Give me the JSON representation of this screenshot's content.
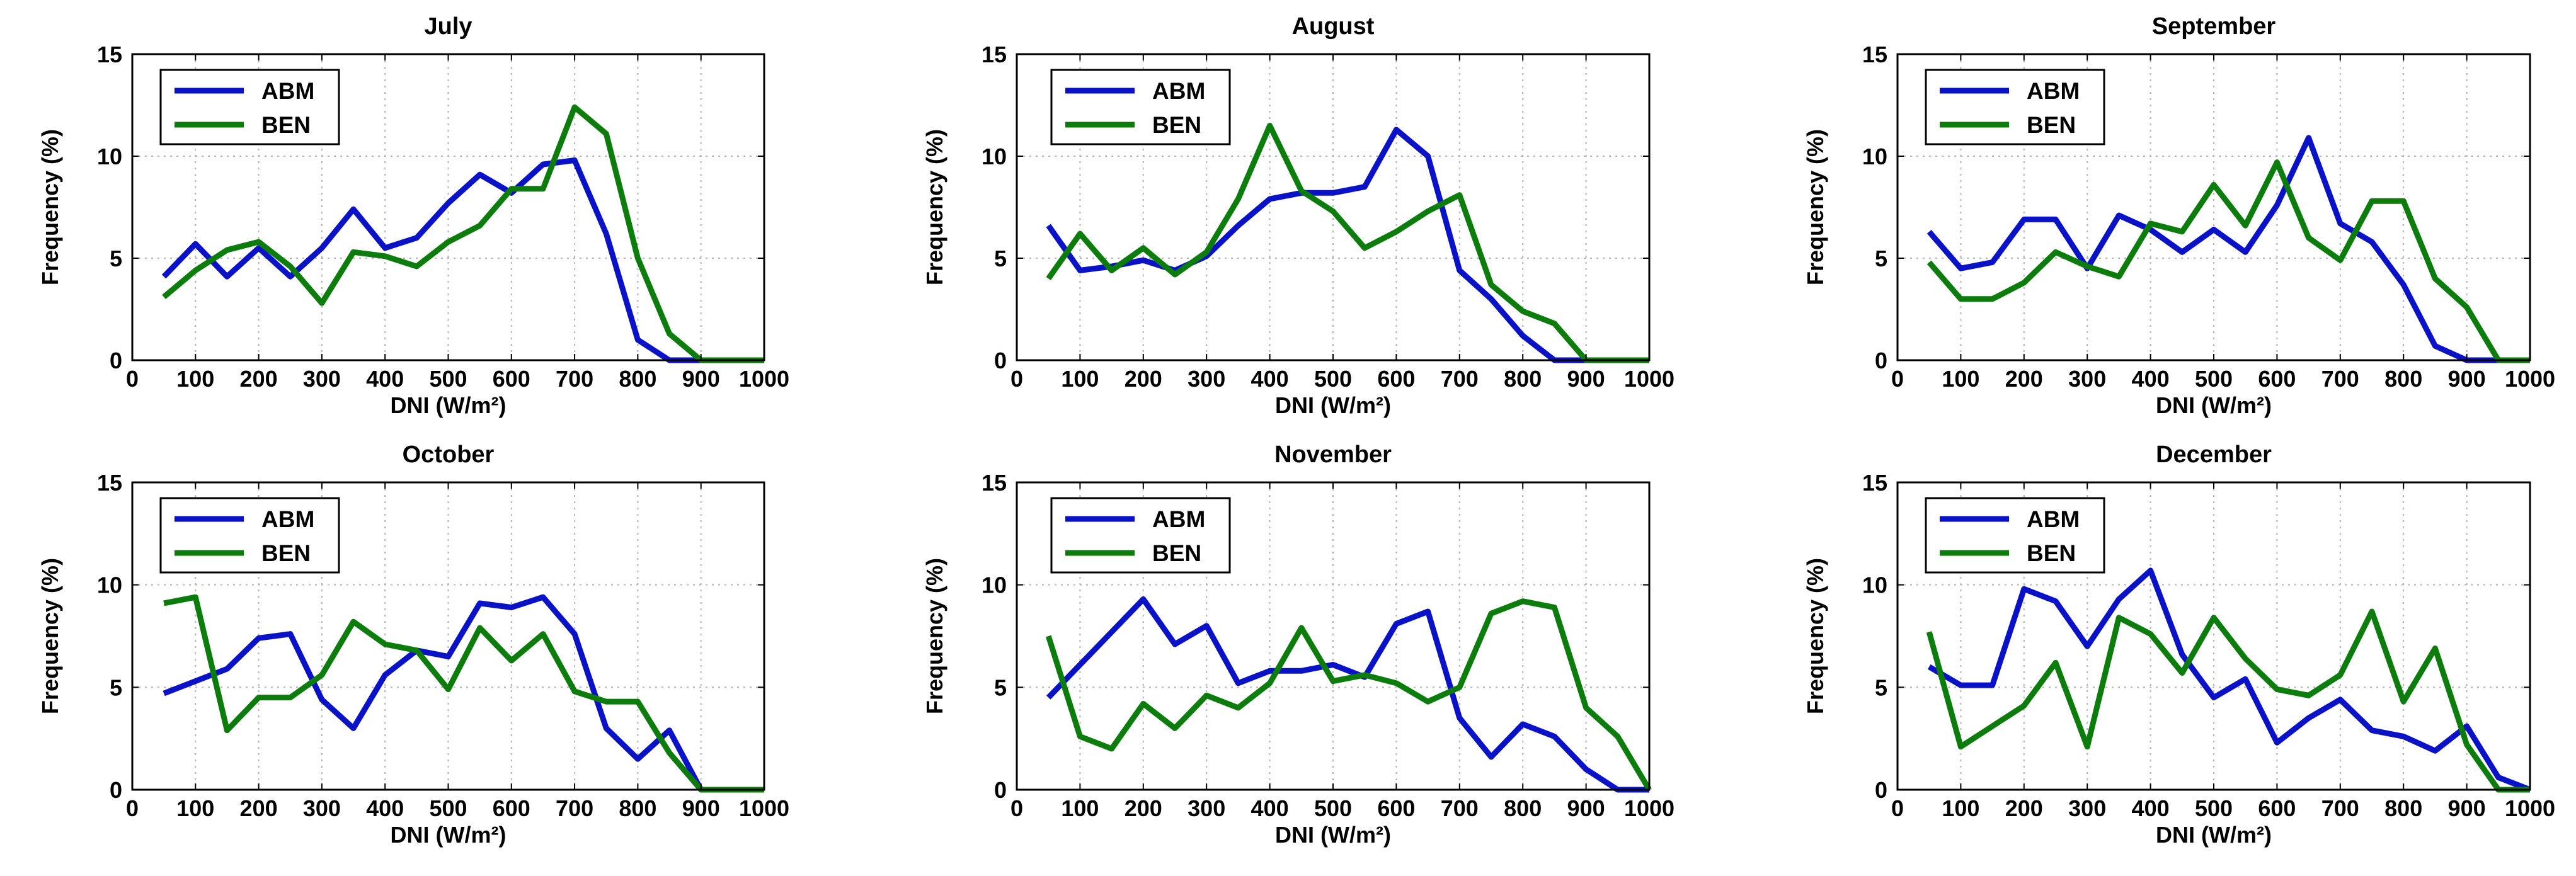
{
  "colors": {
    "ABM": "#0a12c8",
    "BEN": "#0c7d0c",
    "grid": "#b4b4b4",
    "axis": "#000000"
  },
  "chart_data": [
    {
      "type": "line",
      "title": "July",
      "xlabel": "DNI (W/m²)",
      "ylabel": "Frequency (%)",
      "xlim": [
        0,
        1000
      ],
      "ylim": [
        0,
        15
      ],
      "xticks": [
        0,
        100,
        200,
        300,
        400,
        500,
        600,
        700,
        800,
        900,
        1000
      ],
      "yticks": [
        0,
        5,
        10,
        15
      ],
      "grid": true,
      "legend_position": "top-left",
      "series": [
        {
          "name": "ABM",
          "x": [
            50,
            100,
            150,
            200,
            250,
            300,
            350,
            400,
            450,
            500,
            550,
            600,
            650,
            700,
            750,
            800,
            850,
            900,
            950,
            1000
          ],
          "y": [
            4.1,
            5.7,
            4.1,
            5.5,
            4.1,
            5.5,
            7.4,
            5.5,
            6.0,
            7.7,
            9.1,
            8.2,
            9.6,
            9.8,
            6.2,
            1.0,
            0,
            0,
            0,
            0
          ]
        },
        {
          "name": "BEN",
          "x": [
            50,
            100,
            150,
            200,
            250,
            300,
            350,
            400,
            450,
            500,
            550,
            600,
            650,
            700,
            750,
            800,
            850,
            900,
            950,
            1000
          ],
          "y": [
            3.1,
            4.4,
            5.4,
            5.8,
            4.6,
            2.8,
            5.3,
            5.1,
            4.6,
            5.8,
            6.6,
            8.4,
            8.4,
            12.4,
            11.1,
            5.0,
            1.3,
            0,
            0,
            0
          ]
        }
      ]
    },
    {
      "type": "line",
      "title": "August",
      "xlabel": "DNI (W/m²)",
      "ylabel": "Frequency (%)",
      "xlim": [
        0,
        1000
      ],
      "ylim": [
        0,
        15
      ],
      "xticks": [
        0,
        100,
        200,
        300,
        400,
        500,
        600,
        700,
        800,
        900,
        1000
      ],
      "yticks": [
        0,
        5,
        10,
        15
      ],
      "grid": true,
      "legend_position": "top-left",
      "series": [
        {
          "name": "ABM",
          "x": [
            50,
            100,
            150,
            200,
            250,
            300,
            350,
            400,
            450,
            500,
            550,
            600,
            650,
            700,
            750,
            800,
            850,
            900,
            950,
            1000
          ],
          "y": [
            6.6,
            4.4,
            4.6,
            4.9,
            4.4,
            5.1,
            6.6,
            7.9,
            8.2,
            8.2,
            8.5,
            11.3,
            10.0,
            4.4,
            3.0,
            1.2,
            0,
            0,
            0,
            0
          ]
        },
        {
          "name": "BEN",
          "x": [
            50,
            100,
            150,
            200,
            250,
            300,
            350,
            400,
            450,
            500,
            550,
            600,
            650,
            700,
            750,
            800,
            850,
            900,
            950,
            1000
          ],
          "y": [
            4.0,
            6.2,
            4.4,
            5.5,
            4.2,
            5.3,
            7.9,
            11.5,
            8.3,
            7.3,
            5.5,
            6.3,
            7.3,
            8.1,
            3.7,
            2.4,
            1.8,
            0,
            0,
            0
          ]
        }
      ]
    },
    {
      "type": "line",
      "title": "September",
      "xlabel": "DNI (W/m²)",
      "ylabel": "Frequency (%)",
      "xlim": [
        0,
        1000
      ],
      "ylim": [
        0,
        15
      ],
      "xticks": [
        0,
        100,
        200,
        300,
        400,
        500,
        600,
        700,
        800,
        900,
        1000
      ],
      "yticks": [
        0,
        5,
        10,
        15
      ],
      "grid": true,
      "legend_position": "top-left",
      "series": [
        {
          "name": "ABM",
          "x": [
            50,
            100,
            150,
            200,
            250,
            300,
            350,
            400,
            450,
            500,
            550,
            600,
            650,
            700,
            750,
            800,
            850,
            900,
            950,
            1000
          ],
          "y": [
            6.3,
            4.5,
            4.8,
            6.9,
            6.9,
            4.5,
            7.1,
            6.4,
            5.3,
            6.4,
            5.3,
            7.6,
            10.9,
            6.7,
            5.8,
            3.7,
            0.7,
            0,
            0,
            0
          ]
        },
        {
          "name": "BEN",
          "x": [
            50,
            100,
            150,
            200,
            250,
            300,
            350,
            400,
            450,
            500,
            550,
            600,
            650,
            700,
            750,
            800,
            850,
            900,
            950,
            1000
          ],
          "y": [
            4.8,
            3.0,
            3.0,
            3.8,
            5.3,
            4.6,
            4.1,
            6.7,
            6.3,
            8.6,
            6.6,
            9.7,
            6.0,
            4.9,
            7.8,
            7.8,
            4.0,
            2.6,
            0,
            0
          ]
        }
      ]
    },
    {
      "type": "line",
      "title": "October",
      "xlabel": "DNI (W/m²)",
      "ylabel": "Frequency (%)",
      "xlim": [
        0,
        1000
      ],
      "ylim": [
        0,
        15
      ],
      "xticks": [
        0,
        100,
        200,
        300,
        400,
        500,
        600,
        700,
        800,
        900,
        1000
      ],
      "yticks": [
        0,
        5,
        10,
        15
      ],
      "grid": true,
      "legend_position": "top-left",
      "series": [
        {
          "name": "ABM",
          "x": [
            50,
            100,
            150,
            200,
            250,
            300,
            350,
            400,
            450,
            500,
            550,
            600,
            650,
            700,
            750,
            800,
            850,
            900,
            950,
            1000
          ],
          "y": [
            4.7,
            5.3,
            5.9,
            7.4,
            7.6,
            4.4,
            3.0,
            5.6,
            6.8,
            6.5,
            9.1,
            8.9,
            9.4,
            7.6,
            3.0,
            1.5,
            2.9,
            0,
            0,
            0
          ]
        },
        {
          "name": "BEN",
          "x": [
            50,
            100,
            150,
            200,
            250,
            300,
            350,
            400,
            450,
            500,
            550,
            600,
            650,
            700,
            750,
            800,
            850,
            900,
            950,
            1000
          ],
          "y": [
            9.1,
            9.4,
            2.9,
            4.5,
            4.5,
            5.6,
            8.2,
            7.1,
            6.8,
            4.9,
            7.9,
            6.3,
            7.6,
            4.8,
            4.3,
            4.3,
            1.8,
            0,
            0,
            0
          ]
        }
      ]
    },
    {
      "type": "line",
      "title": "November",
      "xlabel": "DNI (W/m²)",
      "ylabel": "Frequency (%)",
      "xlim": [
        0,
        1000
      ],
      "ylim": [
        0,
        15
      ],
      "xticks": [
        0,
        100,
        200,
        300,
        400,
        500,
        600,
        700,
        800,
        900,
        1000
      ],
      "yticks": [
        0,
        5,
        10,
        15
      ],
      "grid": true,
      "legend_position": "top-left",
      "series": [
        {
          "name": "ABM",
          "x": [
            50,
            100,
            150,
            200,
            250,
            300,
            350,
            400,
            450,
            500,
            550,
            600,
            650,
            700,
            750,
            800,
            850,
            900,
            950,
            1000
          ],
          "y": [
            4.5,
            6.1,
            7.7,
            9.3,
            7.1,
            8.0,
            5.2,
            5.8,
            5.8,
            6.1,
            5.5,
            8.1,
            8.7,
            3.5,
            1.6,
            3.2,
            2.6,
            1.0,
            0,
            0
          ]
        },
        {
          "name": "BEN",
          "x": [
            50,
            100,
            150,
            200,
            250,
            300,
            350,
            400,
            450,
            500,
            550,
            600,
            650,
            700,
            750,
            800,
            850,
            900,
            950,
            1000
          ],
          "y": [
            7.5,
            2.6,
            2.0,
            4.2,
            3.0,
            4.6,
            4.0,
            5.2,
            7.9,
            5.3,
            5.6,
            5.2,
            4.3,
            5.0,
            8.6,
            9.2,
            8.9,
            4.0,
            2.6,
            0
          ]
        }
      ]
    },
    {
      "type": "line",
      "title": "December",
      "xlabel": "DNI (W/m²)",
      "ylabel": "Frequency (%)",
      "xlim": [
        0,
        1000
      ],
      "ylim": [
        0,
        15
      ],
      "xticks": [
        0,
        100,
        200,
        300,
        400,
        500,
        600,
        700,
        800,
        900,
        1000
      ],
      "yticks": [
        0,
        5,
        10,
        15
      ],
      "grid": true,
      "legend_position": "top-left",
      "series": [
        {
          "name": "ABM",
          "x": [
            50,
            100,
            150,
            200,
            250,
            300,
            350,
            400,
            450,
            500,
            550,
            600,
            650,
            700,
            750,
            800,
            850,
            900,
            950,
            1000
          ],
          "y": [
            6.0,
            5.1,
            5.1,
            9.8,
            9.2,
            7.0,
            9.3,
            10.7,
            6.6,
            4.5,
            5.4,
            2.3,
            3.5,
            4.4,
            2.9,
            2.6,
            1.9,
            3.1,
            0.6,
            0
          ]
        },
        {
          "name": "BEN",
          "x": [
            50,
            100,
            150,
            200,
            250,
            300,
            350,
            400,
            450,
            500,
            550,
            600,
            650,
            700,
            750,
            800,
            850,
            900,
            950,
            1000
          ],
          "y": [
            7.7,
            2.1,
            3.1,
            4.1,
            6.2,
            2.1,
            8.4,
            7.6,
            5.7,
            8.4,
            6.4,
            4.9,
            4.6,
            5.6,
            8.7,
            4.3,
            6.9,
            2.2,
            0,
            0
          ]
        }
      ]
    }
  ]
}
